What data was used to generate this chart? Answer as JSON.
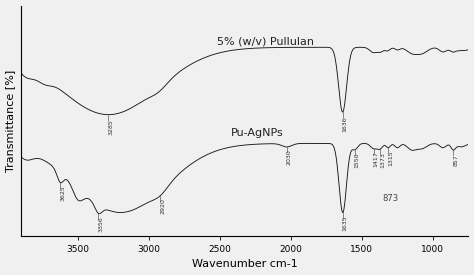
{
  "xlabel": "Wavenumber cm-1",
  "ylabel": "Transmittance [%]",
  "xmin": 3900,
  "xmax": 750,
  "label_pullulan": "5% (w/v) Pullulan",
  "label_agnps": "Pu-AgNPs",
  "bg_color": "#f0f0f0",
  "line_color": "#1a1a1a",
  "xticks": [
    3500,
    3000,
    2500,
    2000,
    1500,
    1000
  ],
  "fontsize_label": 8,
  "fontsize_annot": 4.5,
  "pull_annots": [
    {
      "wn": 3285,
      "label": "3285"
    },
    {
      "wn": 1636,
      "label": "1636"
    }
  ],
  "agnp_annots": [
    {
      "wn": 3625,
      "label": "3625"
    },
    {
      "wn": 3356,
      "label": "3356"
    },
    {
      "wn": 2920,
      "label": "2920"
    },
    {
      "wn": 2030,
      "label": "2030"
    },
    {
      "wn": 1635,
      "label": "1635"
    },
    {
      "wn": 1550,
      "label": "1550"
    },
    {
      "wn": 1417,
      "label": "1417"
    },
    {
      "wn": 1373,
      "label": "1373"
    },
    {
      "wn": 1315,
      "label": "1315"
    },
    {
      "wn": 857,
      "label": "857"
    }
  ],
  "agnp_label_873": "873"
}
